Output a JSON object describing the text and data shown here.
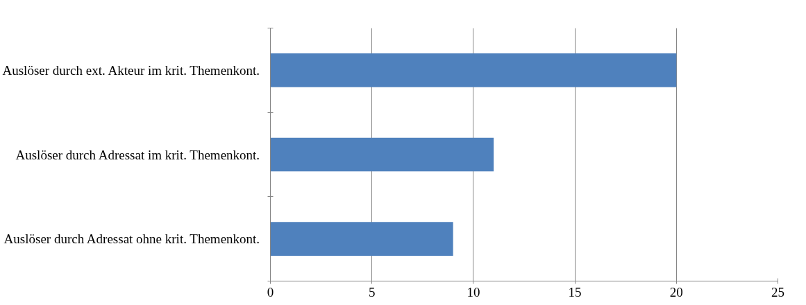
{
  "chart_data": {
    "type": "bar",
    "orientation": "horizontal",
    "categories": [
      "Auslöser durch ext. Akteur im krit. Themenkont.",
      "Auslöser durch Adressat im krit. Themenkont.",
      "Auslöser durch Adressat ohne krit. Themenkont."
    ],
    "values": [
      20,
      11,
      9
    ],
    "color": "#4f81bd",
    "xlim": [
      0,
      25
    ],
    "xticks": [
      0,
      5,
      10,
      15,
      20,
      25
    ],
    "grid": "x"
  }
}
